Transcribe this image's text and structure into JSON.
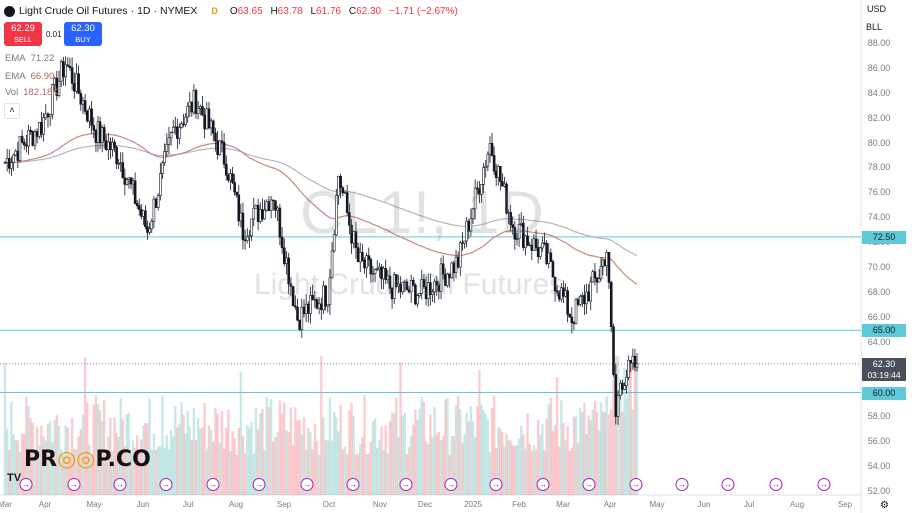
{
  "header": {
    "symbol_name": "Light Crude Oil Futures",
    "interval": "1D",
    "exchange": "NYMEX",
    "badge": "D",
    "ohlc": [
      {
        "k": "O",
        "v": "63.65"
      },
      {
        "k": "H",
        "v": "63.78"
      },
      {
        "k": "L",
        "v": "61.76"
      },
      {
        "k": "C",
        "v": "62.30"
      }
    ],
    "change": "−1.71 (−2.67%)"
  },
  "trade": {
    "sell_price": "62.29",
    "sell_label": "SELL",
    "spread": "0.01",
    "buy_price": "62.30",
    "buy_label": "BUY"
  },
  "indicators": [
    {
      "name": "EMA",
      "value": "71.22"
    },
    {
      "name": "EMA",
      "value": "66.90"
    },
    {
      "name": "Vol",
      "value": "182.18K"
    }
  ],
  "right_panel": {
    "currency": "USD",
    "unit": "BLL",
    "price_labels": [
      "88.00",
      "86.00",
      "84.00",
      "82.00",
      "80.00",
      "78.00",
      "76.00",
      "74.00",
      "72.00",
      "70.00",
      "68.00",
      "66.00",
      "64.00",
      "62.00",
      "60.00",
      "58.00",
      "56.00",
      "54.00",
      "52.00"
    ],
    "level_72": "72.50",
    "level_65": "65.00",
    "level_60": "60.00",
    "last_price": "62.30",
    "countdown": "03:19:44"
  },
  "x_axis": {
    "labels": [
      "Mar",
      "Apr",
      "May",
      "Jun",
      "Jul",
      "Aug",
      "Sep",
      "Oct",
      "Nov",
      "Dec",
      "2025",
      "Feb",
      "Mar",
      "Apr",
      "May",
      "Jun",
      "Jul",
      "Aug",
      "Sep"
    ]
  },
  "watermark": {
    "symbol": "CL1!, 1D",
    "name": "Light Crude Oil Futures"
  },
  "branding": {
    "logo_text": "PR  P.CO",
    "tv": "TV"
  },
  "colors": {
    "up": "#26a69a",
    "down": "#f23645",
    "candle": "#131722",
    "ema_long": "#b2b5be",
    "ema_short": "#c9877f",
    "level_line": "#5ec9d7",
    "event": "#9c27b0"
  },
  "chart_data": {
    "type": "candlestick",
    "title": "CL1!, 1D",
    "y_range": [
      52,
      89
    ],
    "horizontal_levels": [
      72.5,
      65.0,
      60.0
    ],
    "last_price": 62.3,
    "x_range": [
      "2024-03",
      "2025-09"
    ],
    "trend_points": [
      {
        "date": "2024-03-01",
        "close": 78.5
      },
      {
        "date": "2024-03-25",
        "close": 81.5
      },
      {
        "date": "2024-04-10",
        "close": 86.5
      },
      {
        "date": "2024-04-30",
        "close": 81.0
      },
      {
        "date": "2024-05-15",
        "close": 79.0
      },
      {
        "date": "2024-06-03",
        "close": 73.0
      },
      {
        "date": "2024-06-20",
        "close": 81.0
      },
      {
        "date": "2024-07-05",
        "close": 83.5
      },
      {
        "date": "2024-07-25",
        "close": 78.5
      },
      {
        "date": "2024-08-05",
        "close": 73.0
      },
      {
        "date": "2024-08-25",
        "close": 76.0
      },
      {
        "date": "2024-09-10",
        "close": 66.0
      },
      {
        "date": "2024-09-30",
        "close": 68.0
      },
      {
        "date": "2024-10-07",
        "close": 77.5
      },
      {
        "date": "2024-10-20",
        "close": 70.5
      },
      {
        "date": "2024-11-10",
        "close": 68.5
      },
      {
        "date": "2024-12-01",
        "close": 68.0
      },
      {
        "date": "2024-12-25",
        "close": 70.5
      },
      {
        "date": "2025-01-15",
        "close": 80.0
      },
      {
        "date": "2025-01-30",
        "close": 73.5
      },
      {
        "date": "2025-02-20",
        "close": 71.0
      },
      {
        "date": "2025-03-10",
        "close": 66.0
      },
      {
        "date": "2025-03-28",
        "close": 69.5
      },
      {
        "date": "2025-04-02",
        "close": 71.5
      },
      {
        "date": "2025-04-08",
        "close": 58.0
      },
      {
        "date": "2025-04-11",
        "close": 61.0
      },
      {
        "date": "2025-04-22",
        "close": 62.3
      }
    ],
    "ema_long_last": 71.22,
    "ema_short_last": 66.9,
    "volume_last": "182.18K"
  }
}
